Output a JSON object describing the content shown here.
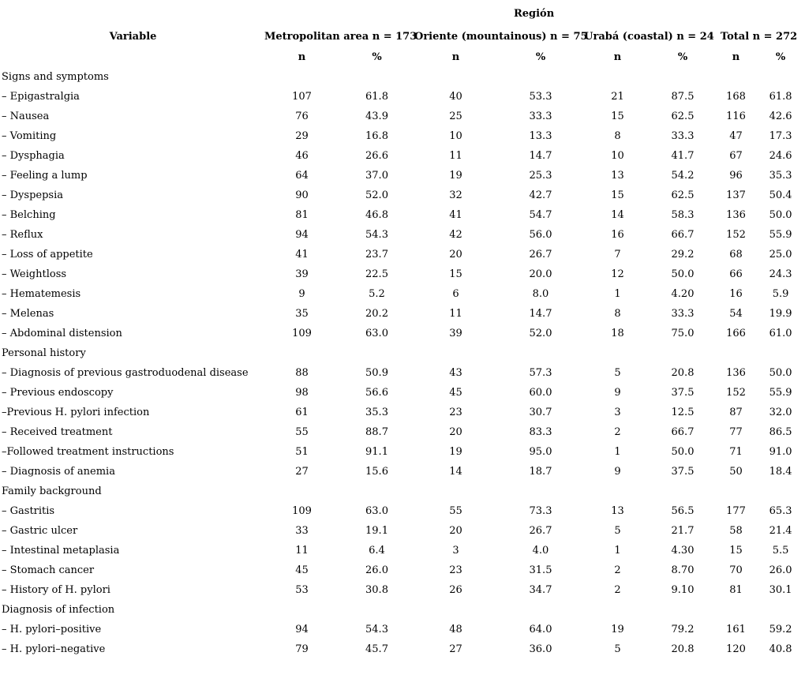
{
  "table": {
    "region_header": "Región",
    "variable_header": "Variable",
    "groups": [
      {
        "label": "Metropolitan area n = 173"
      },
      {
        "label": "Oriente (mountainous) n = 75"
      },
      {
        "label": "Urabá (coastal) n = 24"
      },
      {
        "label": "Total n = 272"
      }
    ],
    "subheaders": [
      "n",
      "%",
      "n",
      "%",
      "n",
      "%",
      "n",
      "%"
    ],
    "rows": [
      {
        "type": "section",
        "label": "Signs and symptoms"
      },
      {
        "type": "data",
        "label": "– Epigastralgia",
        "values": [
          "107",
          "61.8",
          "40",
          "53.3",
          "21",
          "87.5",
          "168",
          "61.8"
        ]
      },
      {
        "type": "data",
        "label": "– Nausea",
        "values": [
          "76",
          "43.9",
          "25",
          "33.3",
          "15",
          "62.5",
          "116",
          "42.6"
        ]
      },
      {
        "type": "data",
        "label": "– Vomiting",
        "values": [
          "29",
          "16.8",
          "10",
          "13.3",
          "8",
          "33.3",
          "47",
          "17.3"
        ]
      },
      {
        "type": "data",
        "label": "– Dysphagia",
        "values": [
          "46",
          "26.6",
          "11",
          "14.7",
          "10",
          "41.7",
          "67",
          "24.6"
        ]
      },
      {
        "type": "data",
        "label": "– Feeling a lump",
        "values": [
          "64",
          "37.0",
          "19",
          "25.3",
          "13",
          "54.2",
          "96",
          "35.3"
        ]
      },
      {
        "type": "data",
        "label": "– Dyspepsia",
        "values": [
          "90",
          "52.0",
          "32",
          "42.7",
          "15",
          "62.5",
          "137",
          "50.4"
        ]
      },
      {
        "type": "data",
        "label": "– Belching",
        "values": [
          "81",
          "46.8",
          "41",
          "54.7",
          "14",
          "58.3",
          "136",
          "50.0"
        ]
      },
      {
        "type": "data",
        "label": "– Reflux",
        "values": [
          "94",
          "54.3",
          "42",
          "56.0",
          "16",
          "66.7",
          "152",
          "55.9"
        ]
      },
      {
        "type": "data",
        "label": "– Loss of appetite",
        "values": [
          "41",
          "23.7",
          "20",
          "26.7",
          "7",
          "29.2",
          "68",
          "25.0"
        ]
      },
      {
        "type": "data",
        "label": "– Weightloss",
        "values": [
          "39",
          "22.5",
          "15",
          "20.0",
          "12",
          "50.0",
          "66",
          "24.3"
        ]
      },
      {
        "type": "data",
        "label": "– Hematemesis",
        "values": [
          "9",
          "5.2",
          "6",
          "8.0",
          "1",
          "4.20",
          "16",
          "5.9"
        ]
      },
      {
        "type": "data",
        "label": "– Melenas",
        "values": [
          "35",
          "20.2",
          "11",
          "14.7",
          "8",
          "33.3",
          "54",
          "19.9"
        ]
      },
      {
        "type": "data",
        "label": "– Abdominal distension",
        "values": [
          "109",
          "63.0",
          "39",
          "52.0",
          "18",
          "75.0",
          "166",
          "61.0"
        ]
      },
      {
        "type": "section",
        "label": "Personal history"
      },
      {
        "type": "data",
        "label": "– Diagnosis of previous gastroduodenal disease",
        "values": [
          "88",
          "50.9",
          "43",
          "57.3",
          "5",
          "20.8",
          "136",
          "50.0"
        ]
      },
      {
        "type": "data",
        "label": "– Previous endoscopy",
        "values": [
          "98",
          "56.6",
          "45",
          "60.0",
          "9",
          "37.5",
          "152",
          "55.9"
        ]
      },
      {
        "type": "data",
        "label": "–Previous H. pylori infection",
        "values": [
          "61",
          "35.3",
          "23",
          "30.7",
          "3",
          "12.5",
          "87",
          "32.0"
        ]
      },
      {
        "type": "data",
        "label": "– Received treatment",
        "values": [
          "55",
          "88.7",
          "20",
          "83.3",
          "2",
          "66.7",
          "77",
          "86.5"
        ]
      },
      {
        "type": "data",
        "label": "–Followed treatment instructions",
        "values": [
          "51",
          "91.1",
          "19",
          "95.0",
          "1",
          "50.0",
          "71",
          "91.0"
        ]
      },
      {
        "type": "data",
        "label": "– Diagnosis of anemia",
        "values": [
          "27",
          "15.6",
          "14",
          "18.7",
          "9",
          "37.5",
          "50",
          "18.4"
        ]
      },
      {
        "type": "section",
        "label": "Family background"
      },
      {
        "type": "data",
        "label": "– Gastritis",
        "values": [
          "109",
          "63.0",
          "55",
          "73.3",
          "13",
          "56.5",
          "177",
          "65.3"
        ]
      },
      {
        "type": "data",
        "label": "– Gastric ulcer",
        "values": [
          "33",
          "19.1",
          "20",
          "26.7",
          "5",
          "21.7",
          "58",
          "21.4"
        ]
      },
      {
        "type": "data",
        "label": "– Intestinal metaplasia",
        "values": [
          "11",
          "6.4",
          "3",
          "4.0",
          "1",
          "4.30",
          "15",
          "5.5"
        ]
      },
      {
        "type": "data",
        "label": "– Stomach cancer",
        "values": [
          "45",
          "26.0",
          "23",
          "31.5",
          "2",
          "8.70",
          "70",
          "26.0"
        ]
      },
      {
        "type": "data",
        "label": "– History of H. pylori",
        "values": [
          "53",
          "30.8",
          "26",
          "34.7",
          "2",
          "9.10",
          "81",
          "30.1"
        ]
      },
      {
        "type": "section",
        "label": "Diagnosis of infection"
      },
      {
        "type": "data",
        "label": "– H. pylori–positive",
        "values": [
          "94",
          "54.3",
          "48",
          "64.0",
          "19",
          "79.2",
          "161",
          "59.2"
        ]
      },
      {
        "type": "data",
        "label": "– H. pylori–negative",
        "values": [
          "79",
          "45.7",
          "27",
          "36.0",
          "5",
          "20.8",
          "120",
          "40.8"
        ]
      }
    ]
  }
}
